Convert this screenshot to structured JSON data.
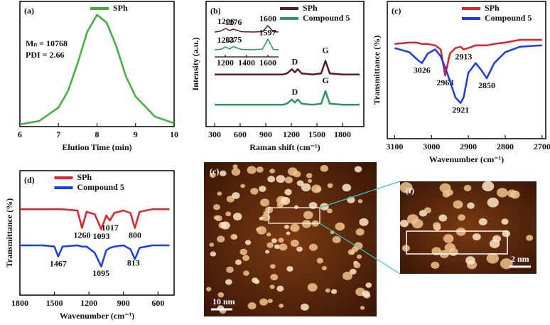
{
  "chart_data": [
    {
      "type": "line",
      "panel": "(a)",
      "xlabel": "Elution Time (min)",
      "x": [
        6,
        6.5,
        7,
        7.25,
        7.5,
        7.75,
        8,
        8.25,
        8.5,
        8.75,
        9,
        9.5,
        10
      ],
      "series": [
        {
          "name": "SPh",
          "color": "#3fb23a",
          "values": [
            0.02,
            0.05,
            0.17,
            0.32,
            0.57,
            0.85,
            1.0,
            0.93,
            0.72,
            0.45,
            0.27,
            0.09,
            0.03
          ]
        }
      ],
      "xlim": [
        6,
        10
      ],
      "ylim": [
        0,
        1.12
      ],
      "xticks": [
        6,
        7,
        8,
        9,
        10
      ],
      "legend": "upper right",
      "notes": [
        "Mₙ = 10768",
        "PDI = 2.66"
      ]
    },
    {
      "type": "line",
      "panel": "(b)",
      "xlabel": "Raman shift (cm⁻¹)",
      "ylabel": "Intensity (a.u.)",
      "x": [
        300,
        600,
        900,
        1100,
        1150,
        1206,
        1240,
        1276,
        1320,
        1450,
        1550,
        1600,
        1650,
        1800,
        2000
      ],
      "series": [
        {
          "name": "SPh",
          "color": "#5a1a2a",
          "values": [
            5,
            5,
            5,
            5,
            5.1,
            5.5,
            5.2,
            5.5,
            5.1,
            5,
            5.1,
            6.3,
            5.1,
            5,
            5
          ]
        },
        {
          "name": "Compound 5",
          "color": "#2a9a5a",
          "values": [
            2.1,
            2.1,
            2.1,
            2.1,
            2.2,
            2.6,
            2.3,
            2.6,
            2.2,
            2.1,
            2.2,
            3.4,
            2.2,
            2.1,
            2.1
          ]
        }
      ],
      "xlim": [
        200,
        2050
      ],
      "ylim": [
        0,
        12
      ],
      "xticks": [
        300,
        600,
        900,
        1200,
        1500,
        1800
      ],
      "legend": "upper right",
      "band_labels": [
        {
          "label": "D",
          "value": 1240
        },
        {
          "label": "G",
          "value": 1600
        }
      ]
    },
    {
      "type": "line",
      "frame": false,
      "x": [
        1100,
        1150,
        1206,
        1240,
        1276,
        1350,
        1450,
        1550,
        1600,
        1650,
        1700
      ],
      "series": [
        {
          "color": "#5a1a2a",
          "values": [
            7,
            7.2,
            8,
            7.4,
            7.8,
            7.1,
            7,
            7.1,
            8.8,
            7.1,
            7
          ],
          "peak_labels": [
            1206,
            1276,
            1600
          ]
        },
        {
          "color": "#2a9a5a",
          "values": [
            2,
            2.1,
            2.8,
            2.2,
            2.9,
            2.1,
            2,
            2.2,
            5,
            2.1,
            2
          ],
          "peak_labels": [
            1203,
            1275,
            1597
          ]
        }
      ],
      "xlim": [
        1100,
        1700
      ],
      "ylim": [
        0,
        10
      ],
      "xticks": [
        1200,
        1400,
        1600
      ],
      "label_position": "above"
    },
    {
      "type": "line",
      "panel": "(c)",
      "xlabel": "Wavenumber (cm⁻¹)",
      "ylabel": "Transmittance (%)",
      "x": [
        3100,
        3060,
        3040,
        3026,
        3010,
        2990,
        2975,
        2963,
        2950,
        2935,
        2921,
        2913,
        2900,
        2880,
        2865,
        2850,
        2830,
        2800,
        2760,
        2700
      ],
      "series": [
        {
          "name": "SPh",
          "color": "#e8202a",
          "values": [
            69,
            70,
            70,
            69,
            69,
            68,
            65,
            46,
            62,
            66,
            67,
            65,
            66,
            68,
            68,
            68,
            69,
            70,
            72,
            72
          ],
          "peak_labels": [
            2963,
            2913
          ]
        },
        {
          "name": "Compound 5",
          "color": "#1a3cf0",
          "values": [
            66,
            63,
            58,
            55,
            62,
            65,
            60,
            52,
            42,
            30,
            26,
            30,
            48,
            55,
            50,
            44,
            55,
            63,
            67,
            68
          ],
          "peak_labels": [
            3026,
            2921,
            2850
          ]
        }
      ],
      "xlim": [
        3120,
        2690
      ],
      "ylim": [
        0,
        100
      ],
      "xticks": [
        3100,
        3000,
        2900,
        2800,
        2700
      ],
      "legend": "upper right",
      "label_position": "below"
    },
    {
      "type": "line",
      "panel": "(d)",
      "xlabel": "Wavenumber (cm⁻¹)",
      "ylabel": "Transmittance (%)",
      "x": [
        1800,
        1600,
        1500,
        1467,
        1430,
        1300,
        1260,
        1220,
        1150,
        1093,
        1050,
        1017,
        980,
        900,
        840,
        800,
        760,
        650,
        500
      ],
      "series": [
        {
          "name": "SPh",
          "color": "#e8202a",
          "values": [
            69,
            69,
            69,
            69,
            69,
            68,
            54,
            67,
            65,
            53,
            64,
            60,
            66,
            68,
            66,
            54,
            67,
            69,
            69
          ],
          "peak_labels": [
            1260,
            1093,
            1017,
            800
          ]
        },
        {
          "name": "Compound 5",
          "color": "#1a3cf0",
          "values": [
            40,
            40,
            39,
            31,
            39,
            40,
            39,
            39,
            34,
            23,
            36,
            38,
            39,
            40,
            37,
            29,
            38,
            40,
            40
          ],
          "peak_labels": [
            1467,
            1095,
            813
          ]
        }
      ],
      "xlim": [
        1800,
        460
      ],
      "ylim": [
        0,
        100
      ],
      "xticks": [
        1800,
        1500,
        1200,
        900,
        600
      ],
      "legend": "upper center",
      "label_position": "below"
    }
  ],
  "images": [
    {
      "label": "(c)",
      "scale_bar": "10 nm"
    },
    {
      "label": "(f)",
      "scale_bar": "2 nm"
    }
  ]
}
